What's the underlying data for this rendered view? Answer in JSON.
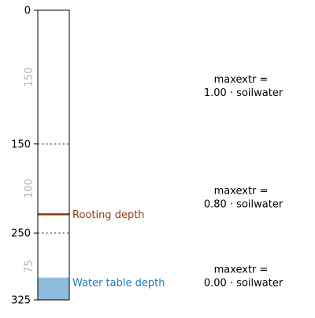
{
  "axis": {
    "depth_min": 0,
    "depth_max": 325,
    "ticks": [
      {
        "value": 0,
        "label": "0"
      },
      {
        "value": 150,
        "label": "150"
      },
      {
        "value": 250,
        "label": "250"
      },
      {
        "value": 325,
        "label": "325"
      }
    ]
  },
  "layers": [
    {
      "center": 75,
      "thickness_label": "150"
    },
    {
      "center": 200,
      "thickness_label": "100"
    },
    {
      "center": 287.5,
      "thickness_label": "75"
    }
  ],
  "boundaries": [
    150,
    250
  ],
  "rooting": {
    "depth": 229,
    "label": "Rooting depth",
    "color": "#8b3a0f"
  },
  "water_table": {
    "depth": 300,
    "label": "Water table depth",
    "label_color": "#1f77b4",
    "fill_color": "#8fbbdc"
  },
  "annotations": [
    {
      "depth": 84,
      "line1": "maxextr =",
      "line2": "1.00 · soilwater"
    },
    {
      "depth": 209,
      "line1": "maxextr =",
      "line2": "0.80 · soilwater"
    },
    {
      "depth": 297,
      "line1": "maxextr =",
      "line2": "0.00 · soilwater"
    }
  ],
  "colors": {
    "axis": "#000000",
    "boundary": "#8c8c8c",
    "thickness_label": "#b0b0b0",
    "text": "#000000"
  }
}
